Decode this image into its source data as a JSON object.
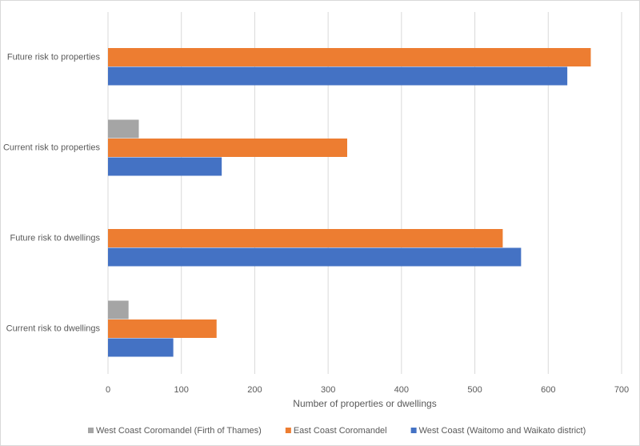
{
  "chart_data": {
    "type": "hbar",
    "categories": [
      "Future risk to properties",
      "Current risk to properties",
      "Future risk to dwellings",
      "Current risk to dwellings"
    ],
    "series": [
      {
        "name": "West Coast Coromandel (Firth of Thames)",
        "color": "#a5a5a5",
        "values": [
          null,
          42,
          null,
          28
        ]
      },
      {
        "name": "East Coast Coromandel",
        "color": "#ed7d31",
        "values": [
          658,
          326,
          538,
          148
        ]
      },
      {
        "name": "West Coast (Waitomo and Waikato district)",
        "color": "#4472c4",
        "values": [
          626,
          155,
          563,
          89
        ]
      }
    ],
    "xlabel": "Number of properties or dwellings",
    "xlim": [
      0,
      700
    ],
    "xticks": [
      0,
      100,
      200,
      300,
      400,
      500,
      600,
      700
    ],
    "grid": true,
    "legend": "bottom"
  }
}
